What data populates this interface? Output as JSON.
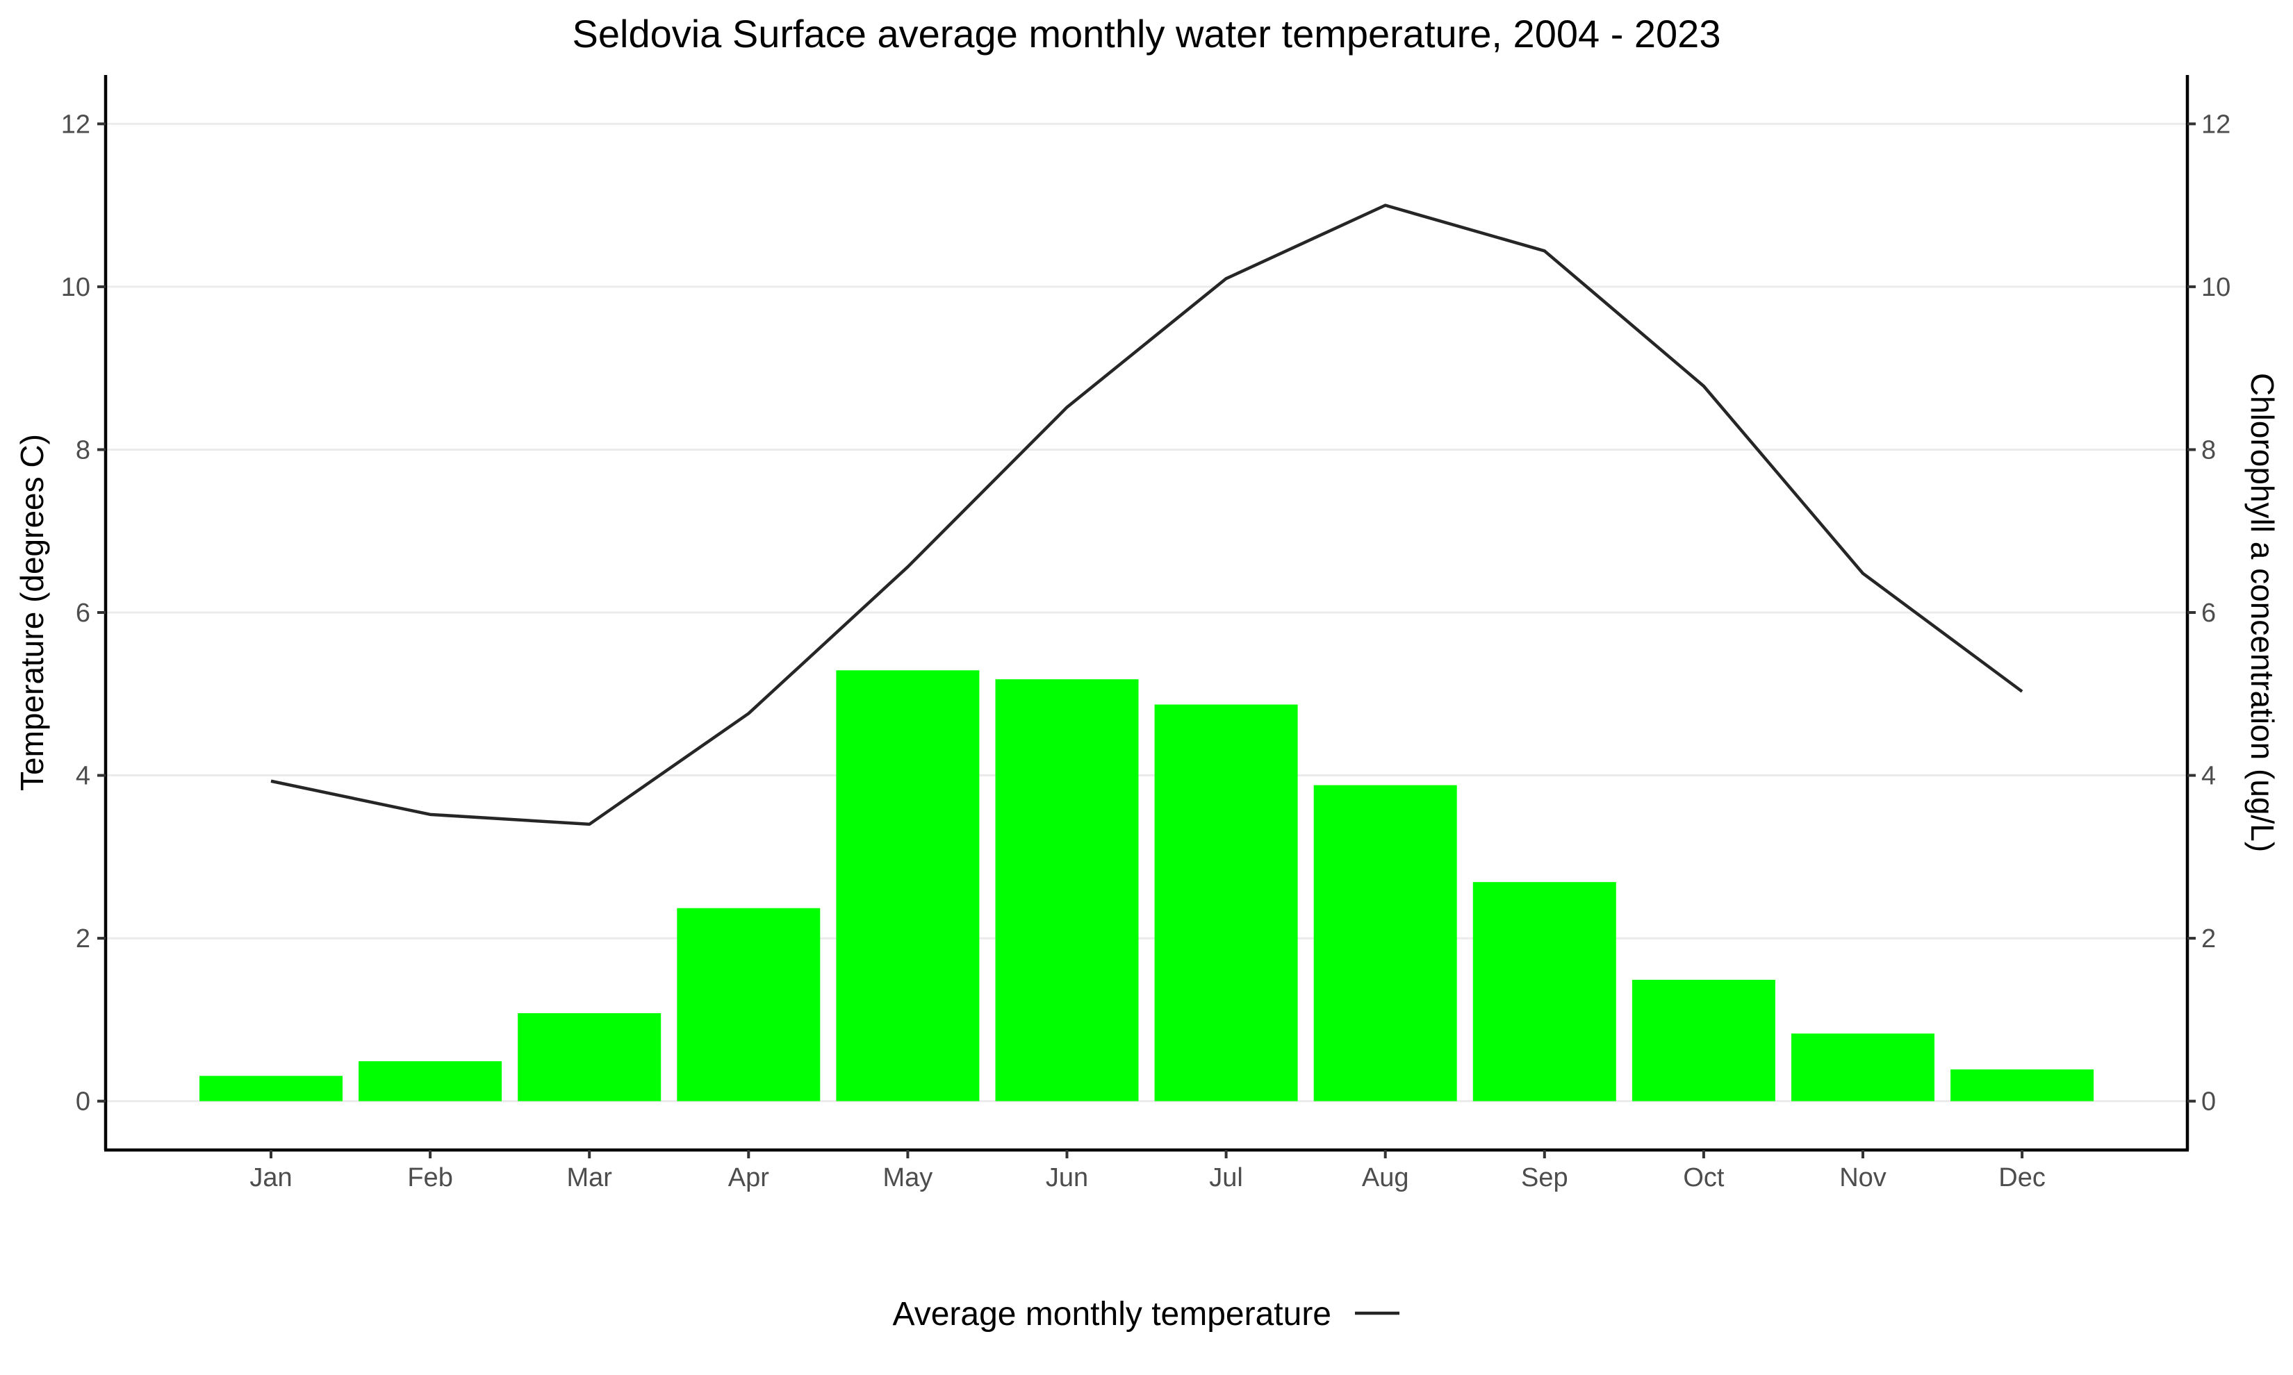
{
  "chart_data": {
    "type": "bar",
    "title": "Seldovia Surface average monthly water temperature, 2004 - 2023",
    "categories": [
      "Jan",
      "Feb",
      "Mar",
      "Apr",
      "May",
      "Jun",
      "Jul",
      "Aug",
      "Sep",
      "Oct",
      "Nov",
      "Dec"
    ],
    "series": [
      {
        "kind": "bar",
        "axis": "right",
        "values": [
          0.31,
          0.49,
          1.08,
          2.37,
          5.29,
          5.18,
          4.87,
          3.88,
          2.69,
          1.49,
          0.83,
          0.39
        ]
      },
      {
        "name": "Average monthly temperature",
        "kind": "line",
        "axis": "left",
        "values": [
          3.93,
          3.52,
          3.4,
          4.76,
          6.56,
          8.52,
          10.1,
          11.0,
          10.44,
          8.78,
          6.48,
          5.03
        ]
      }
    ],
    "ylabel": "Temperature (degrees C)",
    "y2label": "Chlorophyll a concentration (ug/L)",
    "ylim": [
      -0.6,
      12.6
    ],
    "y2lim": [
      -0.6,
      12.6
    ],
    "yticks": [
      "0",
      "2",
      "4",
      "6",
      "8",
      "10",
      "12"
    ],
    "y2ticks": [
      "0",
      "2",
      "4",
      "6",
      "8",
      "10",
      "12"
    ],
    "grid": true,
    "legend_position": "bottom",
    "colors": {
      "bar": "#00ff00",
      "line": "#262626",
      "grid": "#ebebeb",
      "axis": "#000000"
    }
  }
}
